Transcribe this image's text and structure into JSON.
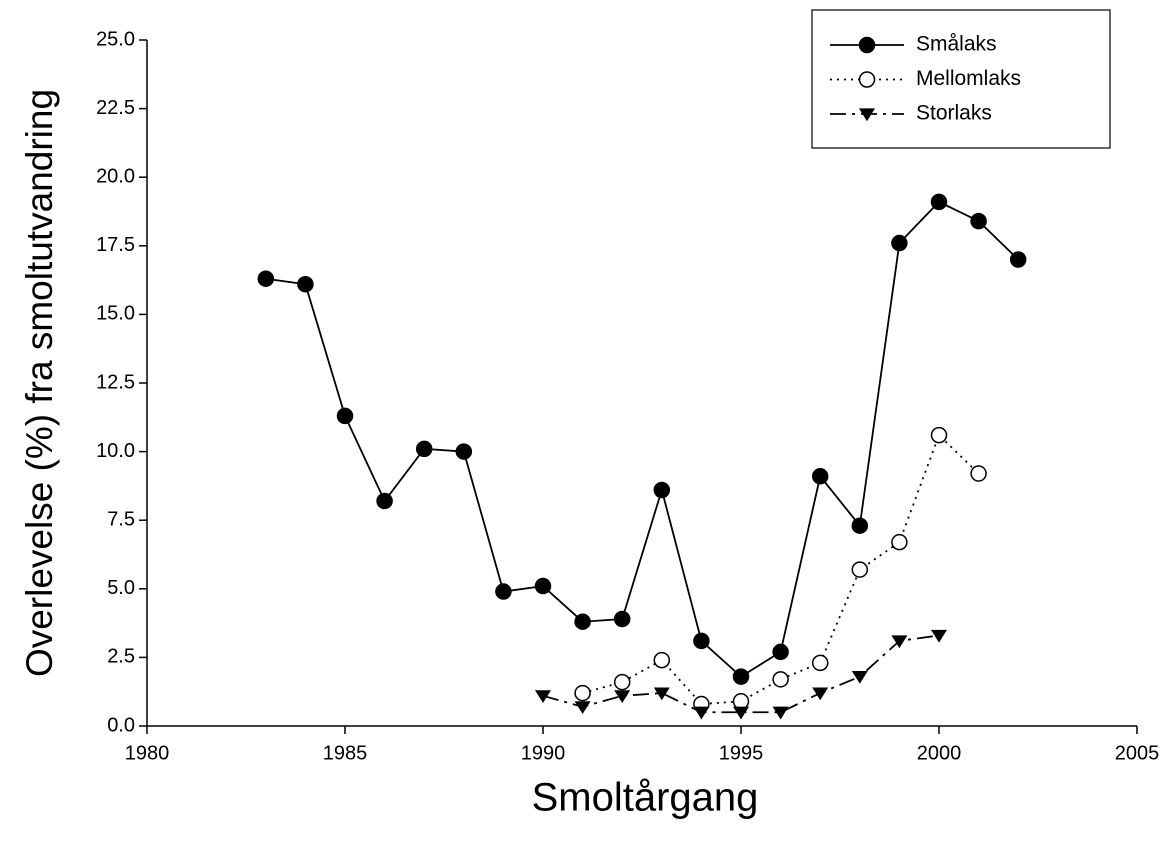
{
  "chart_data": {
    "type": "line",
    "xlabel": "Smoltårgang",
    "ylabel": "Overlevelse (%) fra smoltutvandring",
    "x": [
      1983,
      1984,
      1985,
      1986,
      1987,
      1988,
      1989,
      1990,
      1991,
      1992,
      1993,
      1994,
      1995,
      1996,
      1997,
      1998,
      1999,
      2000,
      2001,
      2002
    ],
    "series": [
      {
        "name": "Smålaks",
        "color": "#000000",
        "marker": "circle-filled",
        "dash": "solid",
        "values": [
          16.3,
          16.1,
          11.3,
          8.2,
          10.1,
          10.0,
          4.9,
          5.1,
          3.8,
          3.9,
          8.6,
          3.1,
          1.8,
          2.7,
          9.1,
          7.3,
          17.6,
          19.1,
          18.4,
          17.0
        ]
      },
      {
        "name": "Mellomlaks",
        "color": "#000000",
        "marker": "circle-open",
        "dash": "dotted",
        "values": [
          null,
          null,
          null,
          null,
          null,
          null,
          null,
          null,
          1.2,
          1.6,
          2.4,
          0.8,
          0.9,
          1.7,
          2.3,
          5.7,
          6.7,
          10.6,
          9.2,
          null
        ]
      },
      {
        "name": "Storlaks",
        "color": "#000000",
        "marker": "triangle-down",
        "dash": "dash-dot",
        "values": [
          null,
          null,
          null,
          null,
          null,
          null,
          null,
          1.1,
          0.7,
          1.1,
          1.2,
          0.5,
          0.5,
          0.5,
          1.2,
          1.8,
          3.1,
          3.3,
          null,
          null
        ]
      }
    ],
    "xlim": [
      1980,
      2005
    ],
    "xticks": [
      1980,
      1985,
      1990,
      1995,
      2000,
      2005
    ],
    "ylim": [
      0,
      25
    ],
    "yticks": [
      {
        "value": 0,
        "label": "0.0"
      },
      {
        "value": 2.5,
        "label": "2.5"
      },
      {
        "value": 5,
        "label": "5.0"
      },
      {
        "value": 7.5,
        "label": "7.5"
      },
      {
        "value": 10,
        "label": "10.0"
      },
      {
        "value": 12.5,
        "label": "12.5"
      },
      {
        "value": 15,
        "label": "15.0"
      },
      {
        "value": 17.5,
        "label": "17.5"
      },
      {
        "value": 20,
        "label": "20.0"
      },
      {
        "value": 22.5,
        "label": "22.5"
      },
      {
        "value": 25,
        "label": "25.0"
      }
    ],
    "legend": "top-right",
    "grid": false
  }
}
